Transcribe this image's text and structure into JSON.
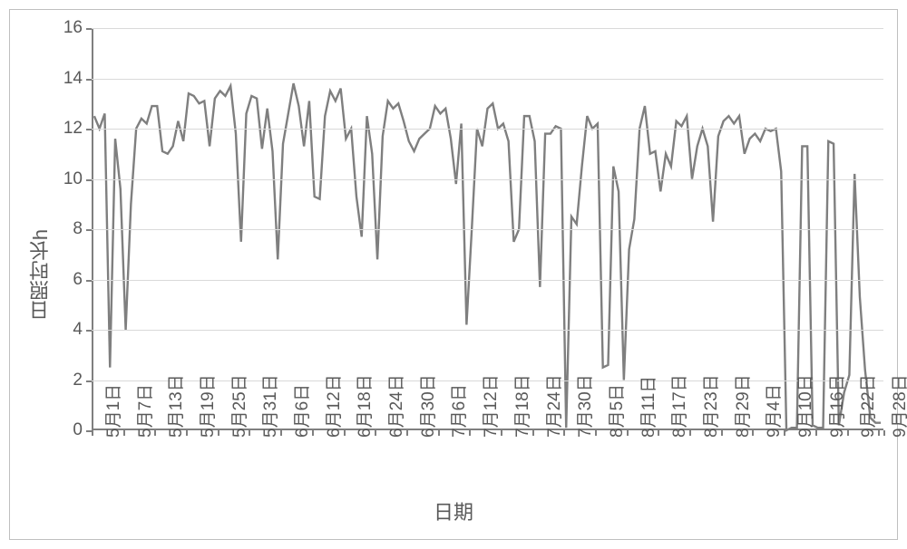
{
  "chart": {
    "type": "line",
    "ylabel": "日照时长h",
    "xlabel": "日期",
    "ylim": [
      0,
      16
    ],
    "ytick_step": 2,
    "yticks": [
      0,
      2,
      4,
      6,
      8,
      10,
      12,
      14,
      16
    ],
    "xticks": [
      "5月1日",
      "5月7日",
      "5月13日",
      "5月19日",
      "5月25日",
      "5月31日",
      "6月6日",
      "6月12日",
      "6月18日",
      "6月24日",
      "6月30日",
      "7月6日",
      "7月12日",
      "7月18日",
      "7月24日",
      "7月30日",
      "8月5日",
      "8月11日",
      "8月17日",
      "8月23日",
      "8月29日",
      "9月4日",
      "9月10日",
      "9月16日",
      "9月22日",
      "9月28日"
    ],
    "xtick_stride_days": 6,
    "n_points": 151,
    "values": [
      12.5,
      12,
      12.6,
      2.5,
      11.6,
      9.6,
      4.0,
      9.0,
      12,
      12.4,
      12.2,
      12.9,
      12.9,
      11.1,
      11.0,
      11.3,
      12.3,
      11.5,
      13.4,
      13.3,
      13.0,
      13.1,
      11.3,
      13.2,
      13.5,
      13.3,
      13.7,
      11.8,
      7.5,
      12.6,
      13.3,
      13.2,
      11.2,
      12.8,
      11.1,
      6.8,
      11.4,
      12.6,
      13.8,
      12.9,
      11.3,
      13.1,
      9.3,
      9.2,
      12.5,
      13.5,
      13.1,
      13.6,
      11.6,
      12.0,
      9.3,
      7.7,
      12.5,
      11.0,
      6.8,
      11.7,
      13.1,
      12.8,
      13.0,
      12.3,
      11.5,
      11.1,
      11.6,
      11.8,
      12.0,
      12.9,
      12.6,
      12.8,
      11.6,
      9.8,
      12.2,
      4.2,
      8.0,
      12.0,
      11.3,
      12.8,
      13.0,
      12.0,
      12.2,
      11.5,
      7.5,
      8.0,
      12.5,
      12.5,
      11.5,
      5.7,
      11.8,
      11.8,
      12.1,
      12.0,
      0.1,
      8.5,
      8.2,
      10.5,
      12.5,
      12.0,
      12.2,
      2.5,
      2.6,
      10.5,
      9.5,
      2.0,
      7.2,
      8.4,
      12.0,
      12.9,
      11.0,
      11.1,
      9.5,
      11.0,
      10.5,
      12.3,
      12.1,
      12.5,
      10.0,
      11.3,
      12.0,
      11.3,
      8.3,
      11.7,
      12.3,
      12.5,
      12.2,
      12.5,
      11.0,
      11.6,
      11.8,
      11.5,
      12.0,
      11.9,
      12.0,
      10.3,
      0.0,
      0.1,
      0.1,
      11.3,
      11.3,
      0.2,
      0.1,
      0.1,
      11.5,
      11.4,
      0.2,
      1.5,
      2.2,
      10.2,
      5.3,
      2.4,
      0.5,
      0.3,
      0.3
    ],
    "line_color": "#7f7f7f",
    "line_width": 2.4,
    "grid_color": "#d9d9d9",
    "axis_color": "#7f7f7f",
    "background_color": "#ffffff",
    "border_color": "#bfbfbf",
    "tick_label_color": "#595959",
    "axis_title_color": "#595959",
    "tick_fontsize": 19,
    "axis_title_fontsize": 22
  }
}
